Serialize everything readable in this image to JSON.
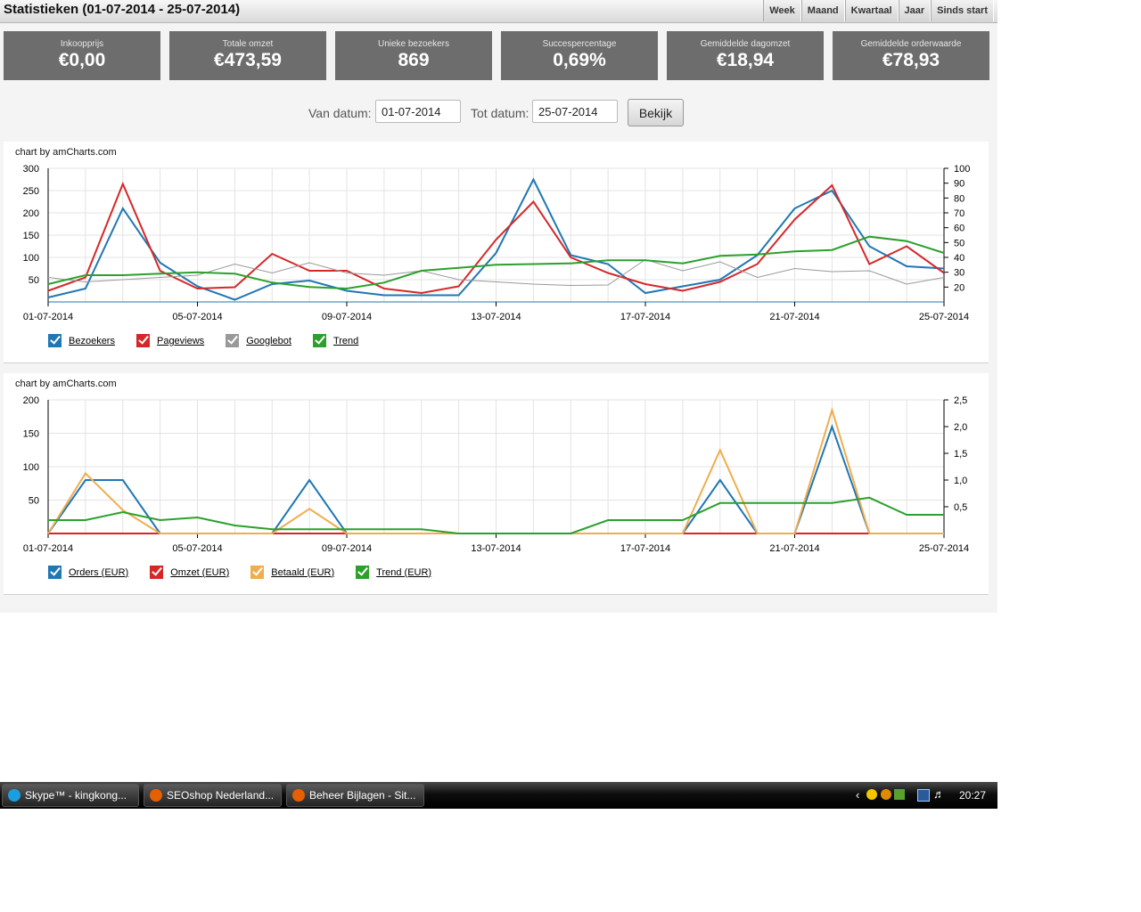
{
  "header": {
    "title": "Statistieken (01-07-2014 - 25-07-2014)",
    "periods": [
      "Week",
      "Maand",
      "Kwartaal",
      "Jaar",
      "Sinds start"
    ]
  },
  "stats": [
    {
      "label": "Inkoopprijs",
      "value": "€0,00"
    },
    {
      "label": "Totale omzet",
      "value": "€473,59"
    },
    {
      "label": "Unieke bezoekers",
      "value": "869"
    },
    {
      "label": "Succespercentage",
      "value": "0,69%"
    },
    {
      "label": "Gemiddelde dagomzet",
      "value": "€18,94"
    },
    {
      "label": "Gemiddelde orderwaarde",
      "value": "€78,93"
    }
  ],
  "filter": {
    "from_label": "Van datum:",
    "from_value": "01-07-2014",
    "to_label": "Tot datum:",
    "to_value": "25-07-2014",
    "submit_label": "Bekijk"
  },
  "chart_data": [
    {
      "type": "line",
      "credit": "chart by amCharts.com",
      "x": [
        "01-07-2014",
        "02-07-2014",
        "03-07-2014",
        "04-07-2014",
        "05-07-2014",
        "06-07-2014",
        "07-07-2014",
        "08-07-2014",
        "09-07-2014",
        "10-07-2014",
        "11-07-2014",
        "12-07-2014",
        "13-07-2014",
        "14-07-2014",
        "15-07-2014",
        "16-07-2014",
        "17-07-2014",
        "18-07-2014",
        "19-07-2014",
        "20-07-2014",
        "21-07-2014",
        "22-07-2014",
        "23-07-2014",
        "24-07-2014",
        "25-07-2014"
      ],
      "x_ticks": [
        "01-07-2014",
        "05-07-2014",
        "09-07-2014",
        "13-07-2014",
        "17-07-2014",
        "21-07-2014",
        "25-07-2014"
      ],
      "ylim": [
        0,
        300
      ],
      "y_ticks": [
        50,
        100,
        150,
        200,
        250,
        300
      ],
      "y2lim": [
        10,
        100
      ],
      "y2_ticks": [
        20,
        30,
        40,
        50,
        60,
        70,
        80,
        90,
        100
      ],
      "series": [
        {
          "name": "Bezoekers",
          "axis": "left",
          "color": "#1f77b4",
          "width": 2,
          "values": [
            10,
            30,
            210,
            88,
            35,
            5,
            40,
            48,
            25,
            15,
            15,
            15,
            110,
            275,
            105,
            85,
            20,
            35,
            50,
            105,
            210,
            250,
            125,
            80,
            75
          ]
        },
        {
          "name": "Pageviews",
          "axis": "left",
          "color": "#d62728",
          "width": 2,
          "values": [
            25,
            55,
            265,
            70,
            30,
            33,
            108,
            70,
            70,
            30,
            20,
            35,
            140,
            225,
            100,
            65,
            40,
            25,
            45,
            85,
            185,
            262,
            85,
            125,
            65
          ]
        },
        {
          "name": "Googlebot",
          "axis": "left",
          "color": "#999999",
          "width": 1,
          "values": [
            55,
            45,
            50,
            55,
            60,
            85,
            65,
            88,
            65,
            60,
            70,
            50,
            45,
            40,
            37,
            38,
            95,
            70,
            90,
            55,
            75,
            68,
            70,
            40,
            55
          ]
        },
        {
          "name": "Trend",
          "axis": "right",
          "color": "#2ca02c",
          "width": 2,
          "values": [
            22,
            28,
            28,
            29,
            30,
            29,
            23,
            20,
            19,
            23,
            31,
            33,
            35,
            35.5,
            36,
            38,
            38,
            36,
            41,
            42,
            44,
            45,
            54,
            51,
            43
          ]
        }
      ]
    },
    {
      "type": "line",
      "credit": "chart by amCharts.com",
      "x": [
        "01-07-2014",
        "02-07-2014",
        "03-07-2014",
        "04-07-2014",
        "05-07-2014",
        "06-07-2014",
        "07-07-2014",
        "08-07-2014",
        "09-07-2014",
        "10-07-2014",
        "11-07-2014",
        "12-07-2014",
        "13-07-2014",
        "14-07-2014",
        "15-07-2014",
        "16-07-2014",
        "17-07-2014",
        "18-07-2014",
        "19-07-2014",
        "20-07-2014",
        "21-07-2014",
        "22-07-2014",
        "23-07-2014",
        "24-07-2014",
        "25-07-2014"
      ],
      "x_ticks": [
        "01-07-2014",
        "05-07-2014",
        "09-07-2014",
        "13-07-2014",
        "17-07-2014",
        "21-07-2014",
        "25-07-2014"
      ],
      "ylim": [
        0,
        200
      ],
      "y_ticks": [
        50,
        100,
        150,
        200
      ],
      "y2lim": [
        0,
        2.5
      ],
      "y2_ticks": [
        "0,5",
        "1,0",
        "1,5",
        "2,0",
        "2,5"
      ],
      "y2_tick_values": [
        0.5,
        1.0,
        1.5,
        2.0,
        2.5
      ],
      "series": [
        {
          "name": "Orders (EUR)",
          "axis": "left",
          "color": "#1f77b4",
          "width": 2,
          "values": [
            0,
            80,
            80,
            0,
            0,
            0,
            0,
            80,
            0,
            0,
            0,
            0,
            0,
            0,
            0,
            0,
            0,
            0,
            80,
            0,
            0,
            160,
            0,
            0,
            0
          ]
        },
        {
          "name": "Omzet (EUR)",
          "axis": "left",
          "color": "#d62728",
          "width": 2,
          "values": [
            0,
            0,
            0,
            0,
            0,
            0,
            0,
            0,
            0,
            0,
            0,
            0,
            0,
            0,
            0,
            0,
            0,
            0,
            0,
            0,
            0,
            0,
            0,
            0,
            0
          ]
        },
        {
          "name": "Betaald (EUR)",
          "axis": "left",
          "color": "#f0ad4e",
          "width": 2,
          "values": [
            0,
            90,
            35,
            0,
            0,
            0,
            0,
            37,
            0,
            0,
            0,
            0,
            0,
            0,
            0,
            0,
            0,
            0,
            125,
            0,
            0,
            185,
            0,
            0,
            0
          ]
        },
        {
          "name": "Trend (EUR)",
          "axis": "right",
          "color": "#2ca02c",
          "width": 2,
          "values": [
            0.25,
            0.25,
            0.4,
            0.25,
            0.3,
            0.15,
            0.08,
            0.08,
            0.08,
            0.08,
            0.08,
            0,
            0,
            0,
            0,
            0.25,
            0.25,
            0.25,
            0.57,
            0.57,
            0.57,
            0.57,
            0.67,
            0.35,
            0.35
          ]
        }
      ]
    }
  ],
  "taskbar": {
    "items": [
      {
        "label": "Skype™ - kingkong...",
        "icon": "skype-icon",
        "color": "#1a9ee0"
      },
      {
        "label": "SEOshop Nederland...",
        "icon": "firefox-icon",
        "color": "#e66000"
      },
      {
        "label": "Beheer Bijlagen - Sit...",
        "icon": "firefox-icon",
        "color": "#e66000"
      }
    ],
    "clock": "20:27",
    "tray_icons": [
      "chevron-left-icon",
      "tray-app-icon",
      "tray-app-icon",
      "tray-app-icon",
      "network-icon",
      "volume-icon"
    ]
  }
}
